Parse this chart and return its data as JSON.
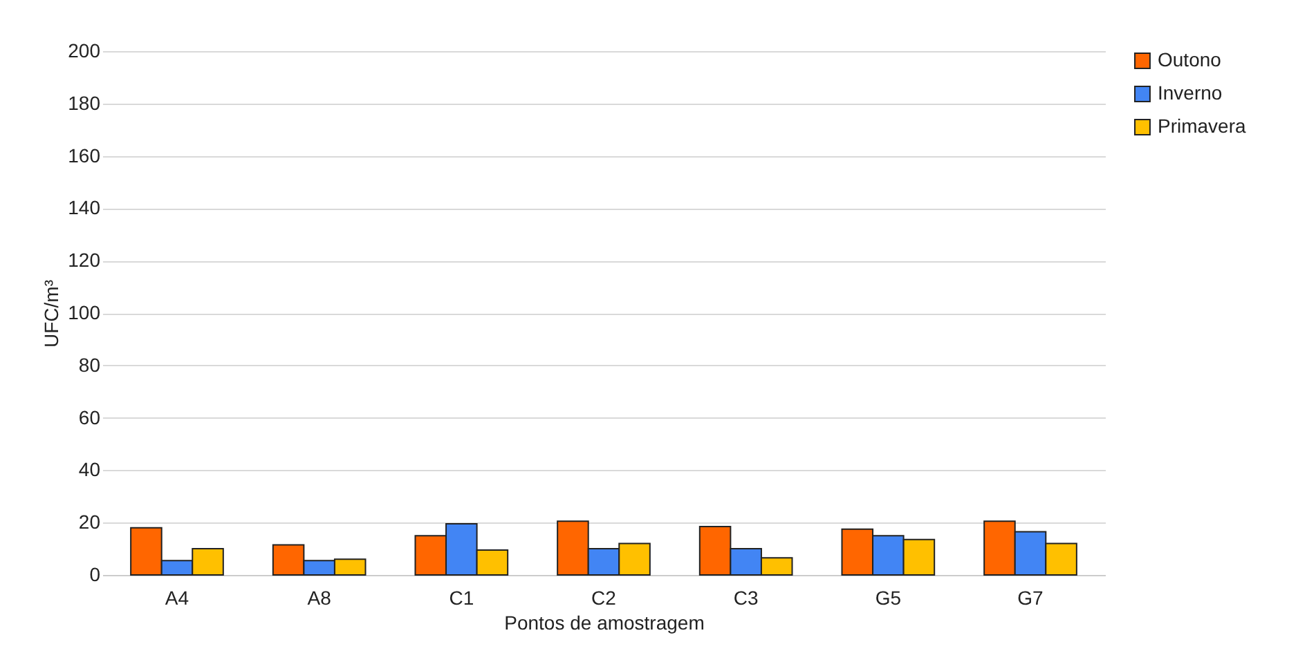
{
  "chart_data": {
    "type": "bar",
    "xlabel": "Pontos de amostragem",
    "ylabel": "UFC/m³",
    "categories": [
      "A4",
      "A8",
      "C1",
      "C2",
      "C3",
      "G5",
      "G7"
    ],
    "series": [
      {
        "name": "Outono",
        "color": "#ff6600",
        "values": [
          18,
          11.5,
          15,
          20.5,
          18.5,
          17.5,
          20.5
        ]
      },
      {
        "name": "Inverno",
        "color": "#4285f4",
        "values": [
          5.5,
          5.5,
          19.5,
          10,
          10,
          15,
          16.5
        ]
      },
      {
        "name": "Primavera",
        "color": "#ffc000",
        "values": [
          10,
          6,
          9.5,
          12,
          6.5,
          13.5,
          12
        ]
      }
    ],
    "ylim": [
      0,
      200
    ],
    "yticks": [
      0,
      20,
      40,
      60,
      80,
      100,
      120,
      140,
      160,
      180,
      200
    ],
    "grid": "y",
    "legend": "right"
  }
}
